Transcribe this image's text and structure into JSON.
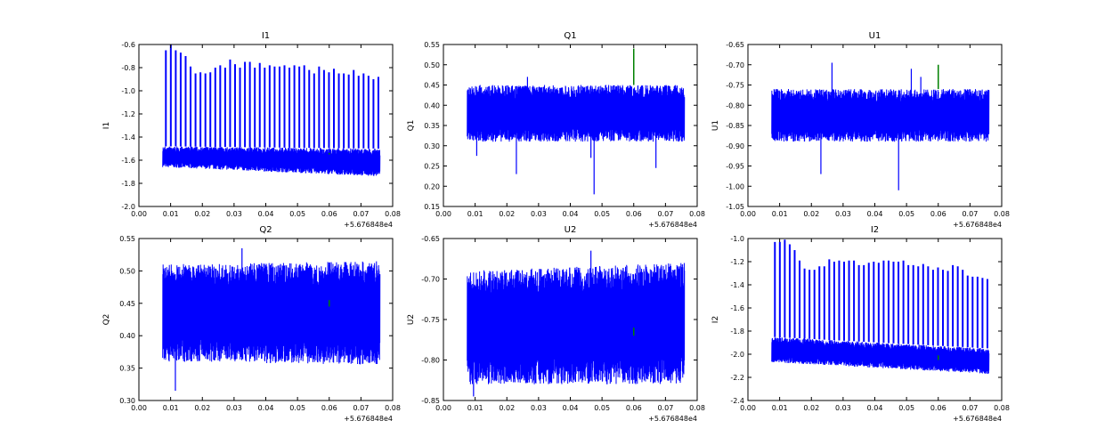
{
  "chart_data": [
    {
      "type": "line",
      "title": "I1",
      "ylabel": "I1",
      "xlim": [
        0,
        0.08
      ],
      "ylim": [
        -2.0,
        -0.6
      ],
      "xticks": [
        "0.00",
        "0.01",
        "0.02",
        "0.03",
        "0.04",
        "0.05",
        "0.06",
        "0.07",
        "0.08"
      ],
      "yticks": [
        "-0.6",
        "-0.8",
        "-1.0",
        "-1.2",
        "-1.4",
        "-1.6",
        "-1.8",
        "-2.0"
      ],
      "ytick_values": [
        -0.6,
        -0.8,
        -1.0,
        -1.2,
        -1.4,
        -1.6,
        -1.8,
        -2.0
      ],
      "x_offset": "+5.676848e4",
      "x_range": [
        0.0075,
        0.076
      ],
      "band_start": [
        -1.66,
        -1.48
      ],
      "band_end": [
        -1.74,
        -1.5
      ],
      "spikes_x_start": 0.0085,
      "spikes_x_end": 0.0755,
      "spike_peaks": [
        -0.65,
        -0.6,
        -0.65,
        -0.67,
        -0.7,
        -0.79,
        -0.85,
        -0.84,
        -0.85,
        -0.84,
        -0.8,
        -0.78,
        -0.8,
        -0.73,
        -0.77,
        -0.8,
        -0.75,
        -0.75,
        -0.8,
        -0.76,
        -0.8,
        -0.78,
        -0.79,
        -0.79,
        -0.78,
        -0.8,
        -0.78,
        -0.79,
        -0.78,
        -0.82,
        -0.85,
        -0.79,
        -0.82,
        -0.84,
        -0.81,
        -0.85,
        -0.85,
        -0.86,
        -0.82,
        -0.87,
        -0.85,
        -0.87,
        -0.9,
        -0.88
      ],
      "extra_spikes": [],
      "green_marker": {
        "x": 0.06,
        "y": [
          -1.55,
          -1.56
        ]
      }
    },
    {
      "type": "line",
      "title": "Q1",
      "ylabel": "Q1",
      "xlim": [
        0,
        0.08
      ],
      "ylim": [
        0.15,
        0.55
      ],
      "xticks": [
        "0.00",
        "0.01",
        "0.02",
        "0.03",
        "0.04",
        "0.05",
        "0.06",
        "0.07",
        "0.08"
      ],
      "yticks": [
        "0.55",
        "0.50",
        "0.45",
        "0.40",
        "0.35",
        "0.30",
        "0.25",
        "0.20",
        "0.15"
      ],
      "ytick_values": [
        0.55,
        0.5,
        0.45,
        0.4,
        0.35,
        0.3,
        0.25,
        0.2,
        0.15
      ],
      "x_offset": "+5.676848e4",
      "x_range": [
        0.0075,
        0.076
      ],
      "band_start": [
        0.31,
        0.45
      ],
      "band_end": [
        0.31,
        0.45
      ],
      "spike_peaks": [],
      "extra_spikes": [
        [
          0.0105,
          0.275
        ],
        [
          0.023,
          0.23
        ],
        [
          0.0265,
          0.47
        ],
        [
          0.0465,
          0.27
        ],
        [
          0.0475,
          0.18
        ],
        [
          0.067,
          0.245
        ]
      ],
      "green_marker": {
        "x": 0.06,
        "y": [
          0.45,
          0.54
        ]
      }
    },
    {
      "type": "line",
      "title": "U1",
      "ylabel": "U1",
      "xlim": [
        0,
        0.08
      ],
      "ylim": [
        -1.05,
        -0.65
      ],
      "xticks": [
        "0.00",
        "0.01",
        "0.02",
        "0.03",
        "0.04",
        "0.05",
        "0.06",
        "0.07",
        "0.08"
      ],
      "yticks": [
        "-0.65",
        "-0.70",
        "-0.75",
        "-0.80",
        "-0.85",
        "-0.90",
        "-0.95",
        "-1.00",
        "-1.05"
      ],
      "ytick_values": [
        -0.65,
        -0.7,
        -0.75,
        -0.8,
        -0.85,
        -0.9,
        -0.95,
        -1.0,
        -1.05
      ],
      "x_offset": "+5.676848e4",
      "x_range": [
        0.0075,
        0.076
      ],
      "band_start": [
        -0.89,
        -0.76
      ],
      "band_end": [
        -0.89,
        -0.76
      ],
      "spike_peaks": [],
      "extra_spikes": [
        [
          0.023,
          -0.97
        ],
        [
          0.0265,
          -0.695
        ],
        [
          0.0475,
          -1.01
        ],
        [
          0.0515,
          -0.71
        ],
        [
          0.0545,
          -0.73
        ]
      ],
      "green_marker": {
        "x": 0.06,
        "y": [
          -0.7,
          -0.76
        ]
      }
    },
    {
      "type": "line",
      "title": "Q2",
      "ylabel": "Q2",
      "xlim": [
        0,
        0.08
      ],
      "ylim": [
        0.3,
        0.55
      ],
      "xticks": [
        "0.00",
        "0.01",
        "0.02",
        "0.03",
        "0.04",
        "0.05",
        "0.06",
        "0.07",
        "0.08"
      ],
      "yticks": [
        "0.55",
        "0.50",
        "0.45",
        "0.40",
        "0.35",
        "0.30"
      ],
      "ytick_values": [
        0.55,
        0.5,
        0.45,
        0.4,
        0.35,
        0.3
      ],
      "x_offset": "+5.676848e4",
      "x_range": [
        0.0075,
        0.076
      ],
      "band_start": [
        0.36,
        0.51
      ],
      "band_end": [
        0.355,
        0.515
      ],
      "spike_peaks": [],
      "extra_spikes": [
        [
          0.0115,
          0.315
        ],
        [
          0.0325,
          0.535
        ]
      ],
      "green_marker": {
        "x": 0.06,
        "y": [
          0.445,
          0.455
        ]
      }
    },
    {
      "type": "line",
      "title": "U2",
      "ylabel": "U2",
      "xlim": [
        0,
        0.08
      ],
      "ylim": [
        -0.85,
        -0.65
      ],
      "xticks": [
        "0.00",
        "0.01",
        "0.02",
        "0.03",
        "0.04",
        "0.05",
        "0.06",
        "0.07",
        "0.08"
      ],
      "yticks": [
        "-0.65",
        "-0.70",
        "-0.75",
        "-0.80",
        "-0.85"
      ],
      "ytick_values": [
        -0.65,
        -0.7,
        -0.75,
        -0.8,
        -0.85
      ],
      "x_offset": "+5.676848e4",
      "x_range": [
        0.0075,
        0.076
      ],
      "band_start": [
        -0.83,
        -0.69
      ],
      "band_end": [
        -0.83,
        -0.68
      ],
      "spike_peaks": [],
      "extra_spikes": [
        [
          0.0095,
          -0.845
        ],
        [
          0.0465,
          -0.665
        ]
      ],
      "green_marker": {
        "x": 0.06,
        "y": [
          -0.76,
          -0.77
        ]
      }
    },
    {
      "type": "line",
      "title": "I2",
      "ylabel": "I2",
      "xlim": [
        0,
        0.08
      ],
      "ylim": [
        -2.4,
        -1.0
      ],
      "xticks": [
        "0.00",
        "0.01",
        "0.02",
        "0.03",
        "0.04",
        "0.05",
        "0.06",
        "0.07",
        "0.08"
      ],
      "yticks": [
        "-1.0",
        "-1.2",
        "-1.4",
        "-1.6",
        "-1.8",
        "-2.0",
        "-2.2",
        "-2.4"
      ],
      "ytick_values": [
        -1.0,
        -1.2,
        -1.4,
        -1.6,
        -1.8,
        -2.0,
        -2.2,
        -2.4
      ],
      "x_offset": "+5.676848e4",
      "x_range": [
        0.0075,
        0.076
      ],
      "band_start": [
        -2.07,
        -1.85
      ],
      "band_end": [
        -2.17,
        -1.95
      ],
      "spikes_x_start": 0.0085,
      "spikes_x_end": 0.0755,
      "spike_peaks": [
        -1.03,
        -1.03,
        -1.01,
        -1.05,
        -1.1,
        -1.19,
        -1.26,
        -1.27,
        -1.27,
        -1.24,
        -1.24,
        -1.18,
        -1.2,
        -1.19,
        -1.2,
        -1.19,
        -1.19,
        -1.23,
        -1.23,
        -1.21,
        -1.2,
        -1.21,
        -1.19,
        -1.19,
        -1.2,
        -1.2,
        -1.19,
        -1.23,
        -1.23,
        -1.24,
        -1.22,
        -1.24,
        -1.27,
        -1.25,
        -1.27,
        -1.28,
        -1.23,
        -1.24,
        -1.27,
        -1.32,
        -1.33,
        -1.33,
        -1.34,
        -1.35
      ],
      "extra_spikes": [],
      "green_marker": {
        "x": 0.06,
        "y": [
          -2.01,
          -2.05
        ]
      }
    }
  ],
  "colors": {
    "series": "#0000ff",
    "marker": "#008000",
    "frame": "#000000"
  }
}
